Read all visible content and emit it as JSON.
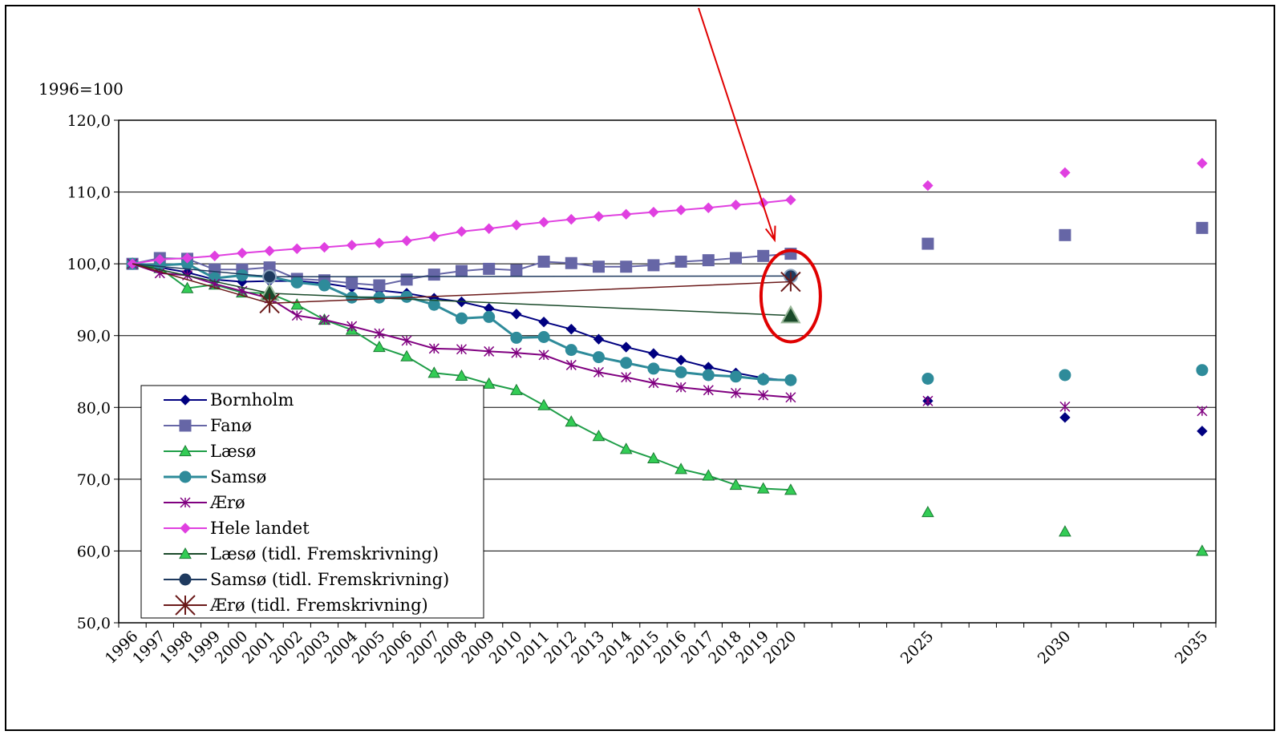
{
  "chart_data": {
    "type": "line",
    "ylabel": "1996=100",
    "ylim": [
      50,
      120
    ],
    "y_ticks": [
      "50,0",
      "60,0",
      "70,0",
      "80,0",
      "90,0",
      "100,0",
      "110,0",
      "120,0"
    ],
    "x_categories": [
      "1996",
      "1997",
      "1998",
      "1999",
      "2000",
      "2001",
      "2002",
      "2003",
      "2004",
      "2005",
      "2006",
      "2007",
      "2008",
      "2009",
      "2010",
      "2011",
      "2012",
      "2013",
      "2014",
      "2015",
      "2016",
      "2017",
      "2018",
      "2019",
      "2020",
      "",
      "",
      "",
      "",
      "2025",
      "",
      "",
      "",
      "",
      "2030",
      "",
      "",
      "",
      "",
      "2035"
    ],
    "grid": "horizontal",
    "legend_position": "bottom-left",
    "series": [
      {
        "name": "Bornholm",
        "color": "#000080",
        "marker": "diamond",
        "values": [
          100,
          99.5,
          98.8,
          97.8,
          97.5,
          97.6,
          97.6,
          97.3,
          96.7,
          96.3,
          95.9,
          95.2,
          94.7,
          93.8,
          93.0,
          91.9,
          90.9,
          89.5,
          88.4,
          87.5,
          86.6,
          85.6,
          84.8,
          84.1,
          83.7,
          null,
          null,
          null,
          null,
          80.9,
          null,
          null,
          null,
          null,
          78.6,
          null,
          null,
          null,
          null,
          76.7
        ]
      },
      {
        "name": "Fanø",
        "color": "#6666A6",
        "marker": "square",
        "values": [
          100,
          100.8,
          100.7,
          99.2,
          99.2,
          99.5,
          97.9,
          97.7,
          97.3,
          97.0,
          97.8,
          98.5,
          99.0,
          99.3,
          99.1,
          100.3,
          100.1,
          99.6,
          99.6,
          99.8,
          100.3,
          100.5,
          100.8,
          101.1,
          101.4,
          null,
          null,
          null,
          null,
          102.8,
          null,
          null,
          null,
          null,
          104.0,
          null,
          null,
          null,
          null,
          105.0
        ]
      },
      {
        "name": "Læsø",
        "color": "#1F9E48",
        "marker": "triangle",
        "values": [
          100,
          99.4,
          96.6,
          97.1,
          96.0,
          95.9,
          94.3,
          92.2,
          90.8,
          88.4,
          87.1,
          84.8,
          84.4,
          83.3,
          82.4,
          80.3,
          78.0,
          76.0,
          74.2,
          72.9,
          71.4,
          70.5,
          69.2,
          68.7,
          68.5,
          null,
          null,
          null,
          null,
          65.4,
          null,
          null,
          null,
          null,
          62.7,
          null,
          null,
          null,
          null,
          60.0
        ]
      },
      {
        "name": "Samsø",
        "color": "#2E8B9A",
        "marker": "circle",
        "values": [
          100,
          99.8,
          100.0,
          98.0,
          98.4,
          98.2,
          97.4,
          97.0,
          95.3,
          95.3,
          95.4,
          94.3,
          92.4,
          92.6,
          89.7,
          89.8,
          88.0,
          87.0,
          86.2,
          85.4,
          84.9,
          84.5,
          84.3,
          83.9,
          83.8,
          null,
          null,
          null,
          null,
          84.0,
          null,
          null,
          null,
          null,
          84.5,
          null,
          null,
          null,
          null,
          85.2
        ]
      },
      {
        "name": "Ærø",
        "color": "#800080",
        "marker": "star",
        "values": [
          100,
          98.7,
          98.4,
          97.2,
          96.2,
          95.2,
          92.8,
          92.2,
          91.3,
          90.3,
          89.3,
          88.2,
          88.1,
          87.8,
          87.6,
          87.3,
          85.9,
          84.9,
          84.2,
          83.4,
          82.8,
          82.4,
          82.0,
          81.7,
          81.4,
          null,
          null,
          null,
          null,
          80.9,
          null,
          null,
          null,
          null,
          80.1,
          null,
          null,
          null,
          null,
          79.5
        ]
      },
      {
        "name": "Hele landet",
        "color": "#E040E0",
        "marker": "diamond",
        "values": [
          100,
          100.6,
          100.8,
          101.1,
          101.5,
          101.8,
          102.1,
          102.3,
          102.6,
          102.9,
          103.2,
          103.8,
          104.5,
          104.9,
          105.4,
          105.8,
          106.2,
          106.6,
          106.9,
          107.2,
          107.5,
          107.8,
          108.2,
          108.5,
          108.9,
          null,
          null,
          null,
          null,
          110.9,
          null,
          null,
          null,
          null,
          112.7,
          null,
          null,
          null,
          null,
          114.0
        ]
      },
      {
        "name": "Læsø (tidl. Fremskrivning)",
        "color": "#1A4A2A",
        "marker": "triangle-big",
        "values": [
          100,
          null,
          null,
          null,
          null,
          95.9,
          null,
          null,
          null,
          null,
          null,
          null,
          null,
          null,
          null,
          null,
          null,
          null,
          null,
          null,
          null,
          null,
          null,
          null,
          92.8,
          null,
          null,
          null,
          null,
          null,
          null,
          null,
          null,
          null,
          null,
          null,
          null,
          null,
          null,
          null
        ]
      },
      {
        "name": "Samsø (tidl. Fremskrivning)",
        "color": "#1F3A5F",
        "marker": "circle-big",
        "values": [
          100,
          null,
          null,
          null,
          null,
          98.2,
          null,
          null,
          null,
          null,
          null,
          null,
          null,
          null,
          null,
          null,
          null,
          null,
          null,
          null,
          null,
          null,
          null,
          null,
          98.3,
          null,
          null,
          null,
          null,
          null,
          null,
          null,
          null,
          null,
          null,
          null,
          null,
          null,
          null,
          null
        ]
      },
      {
        "name": "Ærø (tidl. Fremskrivning)",
        "color": "#6B1A1A",
        "marker": "star-big",
        "values": [
          100,
          null,
          null,
          null,
          null,
          94.5,
          null,
          null,
          null,
          null,
          null,
          null,
          null,
          null,
          null,
          null,
          null,
          null,
          null,
          null,
          null,
          null,
          null,
          null,
          97.5,
          null,
          null,
          null,
          null,
          null,
          null,
          null,
          null,
          null,
          null,
          null,
          null,
          null,
          null,
          null
        ]
      }
    ],
    "annotations": [
      {
        "type": "arrow",
        "color": "#E00000"
      },
      {
        "type": "ellipse",
        "color": "#E00000"
      }
    ]
  }
}
